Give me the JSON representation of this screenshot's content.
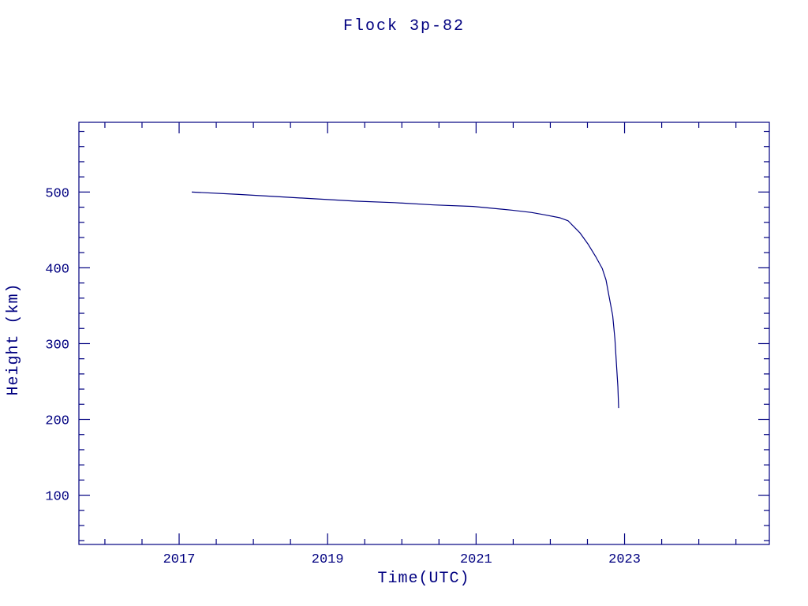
{
  "chart_data": {
    "type": "line",
    "title": "Flock 3p-82",
    "xlabel": "Time(UTC)",
    "ylabel": "Height (km)",
    "xlim": [
      2015.65,
      2024.95
    ],
    "ylim": [
      35,
      592
    ],
    "xticks": [
      2017,
      2019,
      2021,
      2023
    ],
    "yticks": [
      100,
      200,
      300,
      400,
      500
    ],
    "x_minor_step": 0.5,
    "y_minor_step": 20,
    "grid": false,
    "legend": false,
    "line_color": "#000080",
    "background": "#ffffff",
    "series": [
      {
        "name": "Flock 3p-82 orbital height",
        "points": [
          [
            2017.17,
            500
          ],
          [
            2017.78,
            497
          ],
          [
            2018.31,
            494
          ],
          [
            2018.84,
            491
          ],
          [
            2019.37,
            488
          ],
          [
            2019.9,
            486
          ],
          [
            2020.43,
            483
          ],
          [
            2020.96,
            481
          ],
          [
            2021.49,
            476
          ],
          [
            2021.75,
            473
          ],
          [
            2021.92,
            470
          ],
          [
            2022.13,
            466
          ],
          [
            2022.24,
            462
          ],
          [
            2022.32,
            454
          ],
          [
            2022.4,
            446
          ],
          [
            2022.51,
            431
          ],
          [
            2022.61,
            415
          ],
          [
            2022.7,
            399
          ],
          [
            2022.75,
            384
          ],
          [
            2022.79,
            363
          ],
          [
            2022.84,
            337
          ],
          [
            2022.87,
            306
          ],
          [
            2022.89,
            274
          ],
          [
            2022.91,
            243
          ],
          [
            2022.92,
            215
          ]
        ]
      }
    ]
  }
}
